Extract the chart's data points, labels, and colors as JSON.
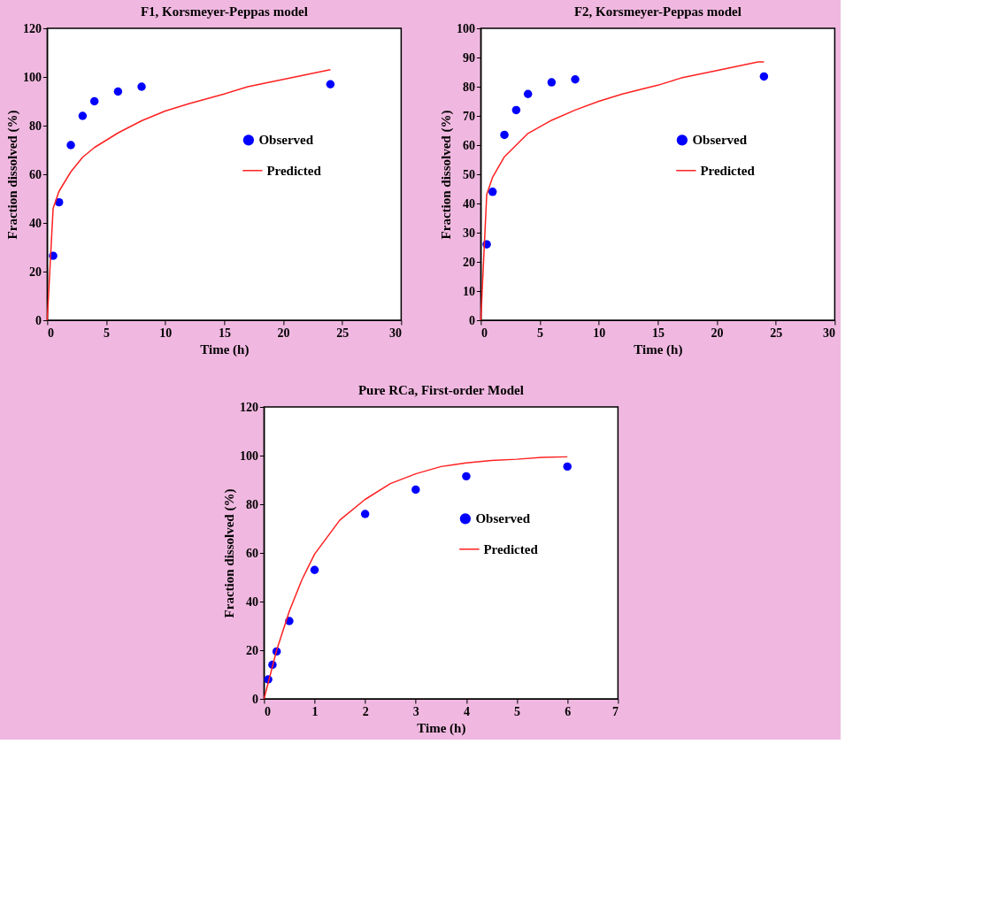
{
  "chart_data": [
    {
      "type": "scatter",
      "title": "F1, Korsmeyer-Peppas  model",
      "xlabel": "Time (h)",
      "ylabel": "Fraction  dissolved  (%)",
      "xlim": [
        0,
        30
      ],
      "xticks": [
        0,
        5,
        10,
        15,
        20,
        25,
        30
      ],
      "ylim": [
        0,
        120
      ],
      "yticks": [
        0,
        20,
        40,
        60,
        80,
        100,
        120
      ],
      "grid": false,
      "legend": "right",
      "series": [
        {
          "name": "Observed",
          "marker": "circle",
          "color": "#0000ff",
          "x": [
            0.5,
            1,
            2,
            3,
            4,
            6,
            8,
            24
          ],
          "values": [
            26.5,
            48.5,
            72,
            84,
            90,
            94,
            96,
            97
          ]
        },
        {
          "name": "Predicted",
          "type": "line",
          "marker": "none",
          "line_style": "solid",
          "color": "#ff2020",
          "x": [
            0,
            0.5,
            1,
            2,
            3,
            4,
            5,
            6,
            8,
            10,
            12,
            15,
            17,
            20,
            24
          ],
          "values": [
            0,
            46,
            53,
            61,
            67,
            71,
            74,
            77,
            82,
            86,
            89,
            93,
            96,
            99,
            103
          ]
        }
      ]
    },
    {
      "type": "scatter",
      "title": "F2, Korsmeyer-Peppas  model",
      "xlabel": "Time (h)",
      "ylabel": "Fraction  dissolved  (%)",
      "xlim": [
        0,
        30
      ],
      "xticks": [
        0,
        5,
        10,
        15,
        20,
        25,
        30
      ],
      "ylim": [
        0,
        100
      ],
      "yticks": [
        0,
        10,
        20,
        30,
        40,
        50,
        60,
        70,
        80,
        90,
        100
      ],
      "grid": false,
      "legend": "right",
      "series": [
        {
          "name": "Observed",
          "marker": "circle",
          "color": "#0000ff",
          "x": [
            0.5,
            1,
            2,
            3,
            4,
            6,
            8,
            24
          ],
          "values": [
            26,
            44,
            63.5,
            72,
            77.5,
            81.5,
            82.5,
            83.5
          ]
        },
        {
          "name": "Predicted",
          "type": "line",
          "marker": "none",
          "line_style": "solid",
          "color": "#ff2020",
          "x": [
            0,
            0.5,
            1,
            2,
            3,
            4,
            6,
            8,
            10,
            12,
            15,
            17,
            20,
            23.5,
            24
          ],
          "values": [
            0,
            43,
            49,
            56,
            60,
            64,
            68.5,
            72,
            75,
            77.5,
            80.5,
            83,
            85.5,
            88.5,
            88.5
          ]
        }
      ]
    },
    {
      "type": "scatter",
      "title": "Pure RCa, First-order  Model",
      "xlabel": "Time (h)",
      "ylabel": "Fraction  dissolved  (%)",
      "xlim": [
        0,
        7
      ],
      "xticks": [
        0,
        1,
        2,
        3,
        4,
        5,
        6,
        7
      ],
      "ylim": [
        0,
        120
      ],
      "yticks": [
        0,
        20,
        40,
        60,
        80,
        100,
        120
      ],
      "grid": false,
      "legend": "right",
      "series": [
        {
          "name": "Observed",
          "marker": "circle",
          "color": "#0000ff",
          "x": [
            0.083,
            0.167,
            0.25,
            0.5,
            1,
            2,
            3,
            4,
            6
          ],
          "values": [
            8,
            14,
            19.5,
            32,
            53,
            76,
            86,
            91.5,
            95.5
          ]
        },
        {
          "name": "Predicted",
          "type": "line",
          "marker": "none",
          "line_style": "solid",
          "color": "#ff2020",
          "x": [
            0,
            0.25,
            0.5,
            0.75,
            1,
            1.5,
            2,
            2.5,
            3,
            3.5,
            4,
            4.5,
            5,
            5.5,
            6
          ],
          "values": [
            0,
            20,
            36,
            49,
            59.5,
            73.5,
            82,
            88.5,
            92.5,
            95.5,
            97,
            98,
            98.5,
            99.3,
            99.5
          ]
        }
      ]
    }
  ]
}
